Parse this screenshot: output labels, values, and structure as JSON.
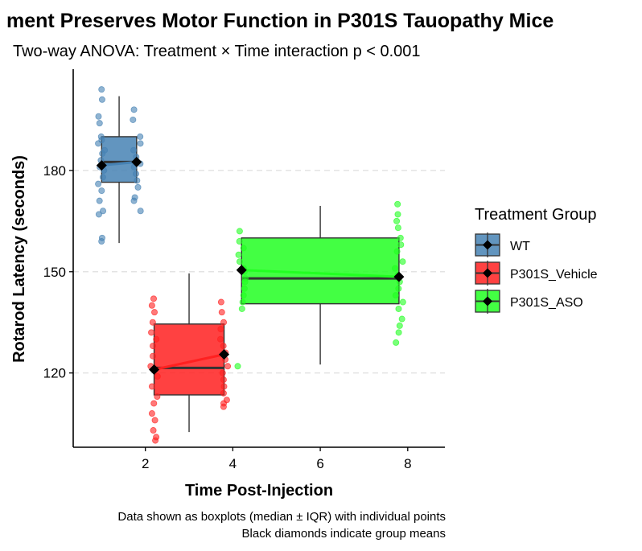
{
  "chart_data": {
    "type": "boxplot",
    "title": "ment Preserves Motor Function in P301S Tauopathy Mice",
    "subtitle": "Two-way ANOVA: Treatment × Time interaction p < 0.001",
    "xlabel": "Time Post-Injection",
    "ylabel": "Rotarod Latency (seconds)",
    "x_ticks": [
      2,
      4,
      6,
      8
    ],
    "y_ticks": [
      120,
      150,
      180
    ],
    "xlim": [
      0.35,
      8.85
    ],
    "ylim": [
      98,
      210
    ],
    "grid": "horizontal dashed at y ticks",
    "legend": {
      "title": "Treatment Group",
      "placement": "right",
      "items": [
        "WT",
        "P301S_Vehicle",
        "P301S_ASO"
      ]
    },
    "series": [
      {
        "name": "WT",
        "color": "#4682b4",
        "box_x_range": [
          1,
          1.8
        ],
        "box": {
          "min": 158.5,
          "q1": 176.5,
          "median": 182.5,
          "q3": 190,
          "max": 202
        },
        "mean_points": [
          {
            "x": 1,
            "y": 181.5
          },
          {
            "x": 1.8,
            "y": 182.5
          }
        ],
        "points": [
          {
            "x": 1,
            "y": 204
          },
          {
            "x": 1,
            "y": 201
          },
          {
            "x": 1,
            "y": 196
          },
          {
            "x": 1,
            "y": 194
          },
          {
            "x": 1,
            "y": 190
          },
          {
            "x": 1,
            "y": 189
          },
          {
            "x": 1,
            "y": 188
          },
          {
            "x": 1,
            "y": 186
          },
          {
            "x": 1,
            "y": 185
          },
          {
            "x": 1,
            "y": 183
          },
          {
            "x": 1,
            "y": 181
          },
          {
            "x": 1,
            "y": 180
          },
          {
            "x": 1,
            "y": 178
          },
          {
            "x": 1,
            "y": 176
          },
          {
            "x": 1,
            "y": 174
          },
          {
            "x": 1,
            "y": 171
          },
          {
            "x": 1,
            "y": 168
          },
          {
            "x": 1,
            "y": 167
          },
          {
            "x": 1,
            "y": 160
          },
          {
            "x": 1,
            "y": 159
          },
          {
            "x": 1.8,
            "y": 198
          },
          {
            "x": 1.8,
            "y": 195
          },
          {
            "x": 1.8,
            "y": 190
          },
          {
            "x": 1.8,
            "y": 188
          },
          {
            "x": 1.8,
            "y": 186
          },
          {
            "x": 1.8,
            "y": 184
          },
          {
            "x": 1.8,
            "y": 182
          },
          {
            "x": 1.8,
            "y": 181
          },
          {
            "x": 1.8,
            "y": 179
          },
          {
            "x": 1.8,
            "y": 177
          },
          {
            "x": 1.8,
            "y": 175
          },
          {
            "x": 1.8,
            "y": 172
          },
          {
            "x": 1.8,
            "y": 171
          },
          {
            "x": 1.8,
            "y": 168
          }
        ]
      },
      {
        "name": "P301S_Vehicle",
        "color": "#ff2020",
        "box_x_range": [
          2.2,
          3.8
        ],
        "box": {
          "min": 102.5,
          "q1": 113.5,
          "median": 121.5,
          "q3": 134.5,
          "max": 149.5
        },
        "mean_points": [
          {
            "x": 2.2,
            "y": 121
          },
          {
            "x": 3.8,
            "y": 125.5
          }
        ],
        "points": [
          {
            "x": 2.2,
            "y": 142
          },
          {
            "x": 2.2,
            "y": 140
          },
          {
            "x": 2.2,
            "y": 138
          },
          {
            "x": 2.2,
            "y": 135
          },
          {
            "x": 2.2,
            "y": 132
          },
          {
            "x": 2.2,
            "y": 130
          },
          {
            "x": 2.2,
            "y": 128
          },
          {
            "x": 2.2,
            "y": 125
          },
          {
            "x": 2.2,
            "y": 122
          },
          {
            "x": 2.2,
            "y": 119
          },
          {
            "x": 2.2,
            "y": 116
          },
          {
            "x": 2.2,
            "y": 113
          },
          {
            "x": 2.2,
            "y": 111
          },
          {
            "x": 2.2,
            "y": 108
          },
          {
            "x": 2.2,
            "y": 106
          },
          {
            "x": 2.2,
            "y": 103
          },
          {
            "x": 2.2,
            "y": 101
          },
          {
            "x": 2.2,
            "y": 100
          },
          {
            "x": 3.8,
            "y": 141
          },
          {
            "x": 3.8,
            "y": 138
          },
          {
            "x": 3.8,
            "y": 135
          },
          {
            "x": 3.8,
            "y": 133
          },
          {
            "x": 3.8,
            "y": 130
          },
          {
            "x": 3.8,
            "y": 128
          },
          {
            "x": 3.8,
            "y": 126
          },
          {
            "x": 3.8,
            "y": 124
          },
          {
            "x": 3.8,
            "y": 122
          },
          {
            "x": 3.8,
            "y": 120
          },
          {
            "x": 3.8,
            "y": 118
          },
          {
            "x": 3.8,
            "y": 116
          },
          {
            "x": 3.8,
            "y": 114
          },
          {
            "x": 3.8,
            "y": 112
          },
          {
            "x": 3.8,
            "y": 111
          },
          {
            "x": 3.8,
            "y": 110
          }
        ]
      },
      {
        "name": "P301S_ASO",
        "color": "#22ff22",
        "box_x_range": [
          4.2,
          7.8
        ],
        "box": {
          "min": 122.5,
          "q1": 140.5,
          "median": 148,
          "q3": 160,
          "max": 169.5
        },
        "mean_points": [
          {
            "x": 4.2,
            "y": 150.5
          },
          {
            "x": 7.8,
            "y": 148.5
          }
        ],
        "points": [
          {
            "x": 4.2,
            "y": 162
          },
          {
            "x": 4.2,
            "y": 159
          },
          {
            "x": 4.2,
            "y": 157
          },
          {
            "x": 4.2,
            "y": 155
          },
          {
            "x": 4.2,
            "y": 153
          },
          {
            "x": 4.2,
            "y": 151
          },
          {
            "x": 4.2,
            "y": 150
          },
          {
            "x": 4.2,
            "y": 148
          },
          {
            "x": 4.2,
            "y": 147
          },
          {
            "x": 4.2,
            "y": 145
          },
          {
            "x": 4.2,
            "y": 143
          },
          {
            "x": 4.2,
            "y": 141
          },
          {
            "x": 4.2,
            "y": 139
          },
          {
            "x": 4.2,
            "y": 122
          },
          {
            "x": 7.8,
            "y": 170
          },
          {
            "x": 7.8,
            "y": 167
          },
          {
            "x": 7.8,
            "y": 165
          },
          {
            "x": 7.8,
            "y": 163
          },
          {
            "x": 7.8,
            "y": 160
          },
          {
            "x": 7.8,
            "y": 158
          },
          {
            "x": 7.8,
            "y": 156
          },
          {
            "x": 7.8,
            "y": 153
          },
          {
            "x": 7.8,
            "y": 151
          },
          {
            "x": 7.8,
            "y": 149
          },
          {
            "x": 7.8,
            "y": 147
          },
          {
            "x": 7.8,
            "y": 145
          },
          {
            "x": 7.8,
            "y": 143
          },
          {
            "x": 7.8,
            "y": 141
          },
          {
            "x": 7.8,
            "y": 139
          },
          {
            "x": 7.8,
            "y": 136
          },
          {
            "x": 7.8,
            "y": 134
          },
          {
            "x": 7.8,
            "y": 132
          },
          {
            "x": 7.8,
            "y": 129
          }
        ]
      }
    ],
    "caption": [
      "Data shown as boxplots (median ± IQR) with individual points",
      "Black diamonds indicate group means"
    ]
  }
}
